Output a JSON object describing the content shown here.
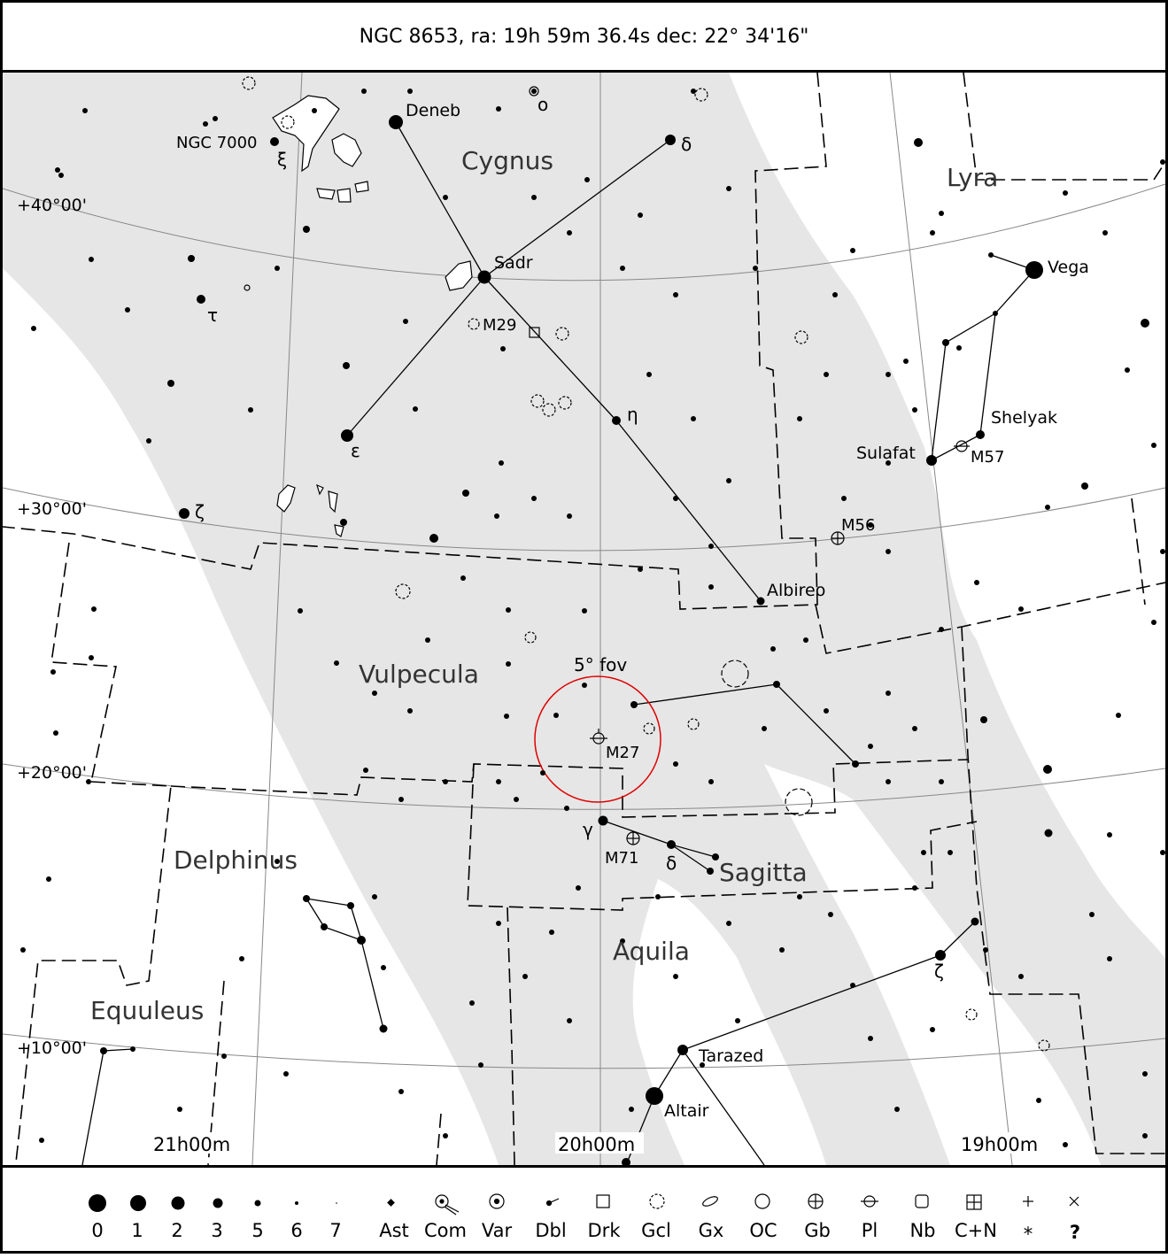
{
  "title": "NGC 8653, ra: 19h 59m 36.4s dec: 22° 34'16\"",
  "constellations": [
    "Cygnus",
    "Lyra",
    "Vulpecula",
    "Delphinus",
    "Sagitta",
    "Aquila",
    "Equuleus"
  ],
  "star_labels": [
    "Deneb",
    "Sadr",
    "Vega",
    "Shelyak",
    "Sulafat",
    "Albireo",
    "Tarazed",
    "Altair",
    "δ",
    "o",
    "ξ",
    "τ",
    "ε",
    "η",
    "ζ",
    "γ",
    "δ",
    "ζ"
  ],
  "dso_labels": [
    "NGC 7000",
    "M29",
    "M56",
    "M57",
    "M27",
    "M71"
  ],
  "fov_label": "5° fov",
  "dec_labels": [
    "+40°00'",
    "+30°00'",
    "+20°00'",
    "+10°00'"
  ],
  "ra_labels": [
    "21h00m",
    "20h00m",
    "19h00m"
  ],
  "legend": {
    "magnitudes": [
      "0",
      "1",
      "2",
      "3",
      "5",
      "6",
      "7"
    ],
    "types": [
      "Ast",
      "Com",
      "Var",
      "Dbl",
      "Drk",
      "Gcl",
      "Gx",
      "OC",
      "Gb",
      "Pl",
      "Nb",
      "C+N",
      "*",
      "?"
    ]
  },
  "colors": {
    "milky_way": "#e6e6e6",
    "fov_circle": "#e00000",
    "ink": "#000000"
  }
}
